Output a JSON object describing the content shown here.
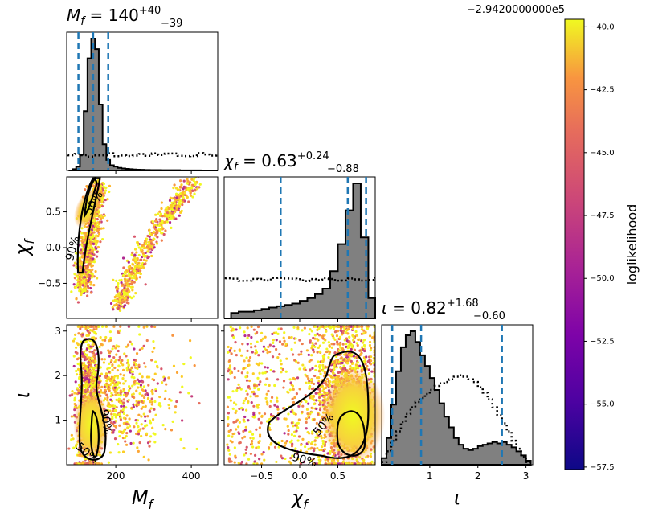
{
  "chart_data": {
    "type": "scatter",
    "figure_kind": "corner plot (posterior samples)",
    "parameters": [
      {
        "key": "mf",
        "label": "M_f",
        "title_value": "140",
        "title_plus": "+40",
        "title_minus": "−39",
        "range": [
          70,
          470
        ],
        "ticks": [
          200,
          400
        ],
        "tick_labels": [
          "200",
          "400"
        ],
        "quantiles": [
          101,
          140,
          180
        ]
      },
      {
        "key": "chif",
        "label": "χ_f",
        "title_value": "0.63",
        "title_plus": "+0.24",
        "title_minus": "−0.88",
        "range": [
          -0.99,
          0.99
        ],
        "ticks": [
          -0.5,
          0.0,
          0.5
        ],
        "tick_labels": [
          "−0.5",
          "0.0",
          "0.5"
        ],
        "quantiles": [
          -0.25,
          0.63,
          0.87
        ]
      },
      {
        "key": "iota",
        "label": "ι",
        "title_value": "0.82",
        "title_plus": "+1.68",
        "title_minus": "−0.60",
        "range": [
          0.0,
          3.14
        ],
        "ticks": [
          1,
          2,
          3
        ],
        "tick_labels": [
          "1",
          "2",
          "3"
        ],
        "quantiles": [
          0.22,
          0.82,
          2.5
        ]
      }
    ],
    "titles": [
      {
        "param": "M_f",
        "text": "M_f = 140 +40 −39"
      },
      {
        "param": "χ_f",
        "text": "χ_f = 0.63 +0.24 −0.88"
      },
      {
        "param": "ι",
        "text": "ι = 0.82 +1.68 −0.60"
      }
    ],
    "histograms": {
      "mf": {
        "bin_centers": [
          80,
          90,
          100,
          110,
          120,
          130,
          140,
          150,
          160,
          170,
          180,
          190,
          200,
          210,
          220,
          230,
          240,
          250,
          260,
          270,
          280,
          300,
          340,
          400,
          450
        ],
        "posterior": [
          0.0,
          0.01,
          0.03,
          0.12,
          0.45,
          0.85,
          1.0,
          0.92,
          0.5,
          0.2,
          0.08,
          0.04,
          0.03,
          0.02,
          0.015,
          0.012,
          0.01,
          0.008,
          0.006,
          0.005,
          0.004,
          0.003,
          0.002,
          0.001,
          0.0
        ],
        "prior_level": 0.12
      },
      "chif": {
        "bin_centers": [
          -0.95,
          -0.85,
          -0.75,
          -0.65,
          -0.55,
          -0.45,
          -0.35,
          -0.25,
          -0.15,
          -0.05,
          0.05,
          0.15,
          0.25,
          0.35,
          0.45,
          0.55,
          0.65,
          0.75,
          0.85,
          0.95
        ],
        "posterior": [
          0.0,
          0.04,
          0.05,
          0.05,
          0.06,
          0.07,
          0.08,
          0.09,
          0.1,
          0.11,
          0.13,
          0.15,
          0.18,
          0.22,
          0.35,
          0.55,
          0.8,
          1.0,
          0.6,
          0.15
        ],
        "prior_level": 0.29
      },
      "iota": {
        "bin_centers": [
          0.05,
          0.15,
          0.25,
          0.35,
          0.45,
          0.55,
          0.65,
          0.75,
          0.85,
          0.95,
          1.05,
          1.15,
          1.25,
          1.35,
          1.45,
          1.55,
          1.65,
          1.75,
          1.85,
          1.95,
          2.05,
          2.15,
          2.25,
          2.35,
          2.45,
          2.55,
          2.65,
          2.75,
          2.85,
          2.95,
          3.05
        ],
        "posterior": [
          0.05,
          0.2,
          0.45,
          0.7,
          0.88,
          0.97,
          1.0,
          0.92,
          0.82,
          0.74,
          0.65,
          0.56,
          0.46,
          0.36,
          0.28,
          0.2,
          0.15,
          0.12,
          0.11,
          0.12,
          0.14,
          0.15,
          0.16,
          0.17,
          0.16,
          0.17,
          0.15,
          0.13,
          0.1,
          0.07,
          0.03
        ],
        "prior": [
          0.02,
          0.1,
          0.18,
          0.25,
          0.32,
          0.38,
          0.43,
          0.47,
          0.5,
          0.53,
          0.56,
          0.59,
          0.61,
          0.62,
          0.64,
          0.66,
          0.67,
          0.66,
          0.64,
          0.62,
          0.58,
          0.54,
          0.49,
          0.43,
          0.37,
          0.31,
          0.25,
          0.18,
          0.12,
          0.06,
          0.02
        ]
      }
    },
    "contour_levels": [
      "50%",
      "90%"
    ],
    "axis_labels": {
      "x": [
        "M_f",
        "χ_f",
        "ι"
      ],
      "y": [
        "χ_f",
        "ι"
      ]
    },
    "colorbar": {
      "label": "loglikelihood",
      "offset_text": "−2.9420000000e5",
      "range": [
        -57.6,
        -39.7
      ],
      "ticks": [
        -40.0,
        -42.5,
        -45.0,
        -47.5,
        -50.0,
        -52.5,
        -55.0,
        -57.5
      ],
      "tick_labels": [
        "−40.0",
        "−42.5",
        "−45.0",
        "−47.5",
        "−50.0",
        "−52.5",
        "−55.0",
        "−57.5"
      ],
      "colormap": "plasma"
    },
    "colors": {
      "quantile_line": "#1f77b4",
      "hist_fill": "#808080",
      "contour": "#000000"
    }
  }
}
